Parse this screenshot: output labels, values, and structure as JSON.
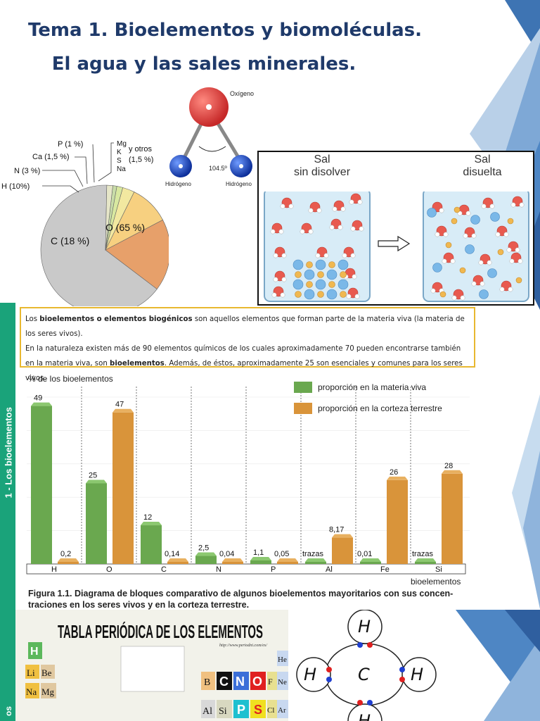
{
  "title_line1": "Tema 1. Bioelementos y biomoléculas.",
  "title_line2": "El agua y las sales minerales.",
  "pie": {
    "slices": [
      {
        "label": "O (65 %)",
        "value": 65,
        "color": "#c9c9c9"
      },
      {
        "label": "C (18 %)",
        "value": 18,
        "color": "#e7a06a"
      },
      {
        "label": "H (10%)",
        "value": 10,
        "color": "#f7d080"
      },
      {
        "label": "N  (3 %)",
        "value": 3,
        "color": "#f2e8a0"
      },
      {
        "label": "Ca (1,5 %)",
        "value": 1.5,
        "color": "#d8e8a0"
      },
      {
        "label": "P (1 %)",
        "value": 1,
        "color": "#c8dca8"
      },
      {
        "label": "Mg K S Na y otros (1,5 %)",
        "value": 1.5,
        "color": "#e6e6c8"
      }
    ],
    "others_elements": [
      "Mg",
      "K",
      "S",
      "Na"
    ],
    "others_label1": "y otros",
    "others_label2": "(1,5 %)"
  },
  "molecule": {
    "oxygen_label": "Oxígeno",
    "hydrogen_left": "Hidrógeno",
    "hydrogen_right": "Hidrógeno",
    "angle": "104.5º"
  },
  "beakers": {
    "left_title1": "Sal",
    "left_title2": "sin disolver",
    "right_title1": "Sal",
    "right_title2": "disuelta"
  },
  "intro": {
    "p1_start": "Los ",
    "p1_bold": "bioelementos o elementos biogénicos",
    "p1_end": " son aquellos elementos que forman parte de la materia viva (la materia de los seres vivos).",
    "p2_start": "En la naturaleza existen más de 90 elementos químicos de los cuales aproximadamente 70 pueden encontrarse también en la materia viva, son ",
    "p2_bold": "bioelementos",
    "p2_end": ". Además, de éstos, aproximadamente 25 son esenciales y comunes para los seres vivos."
  },
  "side_label": "1 - Los bioelementos",
  "side_label2": "os",
  "chart_data": {
    "type": "bar",
    "ylabel": "% de los bioelementos",
    "xlabel": "bioelementos",
    "categories": [
      "H",
      "O",
      "C",
      "N",
      "P",
      "Al",
      "Fe",
      "Si"
    ],
    "series": [
      {
        "name": "proporción en la materia viva",
        "color": "#6aa84f",
        "values": [
          49,
          25,
          12,
          2.5,
          1.1,
          0,
          0.01,
          0
        ],
        "labels": [
          "49",
          "25",
          "12",
          "2,5",
          "1,1",
          "trazas",
          "0,01",
          "trazas"
        ]
      },
      {
        "name": "proporción en la corteza terrestre",
        "color": "#d9943a",
        "values": [
          0.2,
          47,
          0.14,
          0.04,
          0.05,
          8.17,
          26,
          28
        ],
        "labels": [
          "0,2",
          "47",
          "0,14",
          "0,04",
          "0,05",
          "8,17",
          "26",
          "28"
        ]
      }
    ],
    "ylim": [
      0,
      50
    ]
  },
  "caption_bold": "Figura 1.1. Diagrama de bloques comparativo de algunos bioelementos mayoritarios con sus concen-",
  "caption_rest": "traciones en los seres vivos y en la corteza terrestre.",
  "periodic": {
    "title": "TABLA PERIÓDICA DE LOS ELEMENTOS",
    "url": "http://www.periodni.com/es/",
    "highlighted": [
      "C",
      "N",
      "O",
      "P",
      "S"
    ],
    "visible": [
      "H",
      "He",
      "Li",
      "Be",
      "Na",
      "Mg",
      "B",
      "F",
      "Ne",
      "Al",
      "Si",
      "Cl",
      "Ar"
    ]
  },
  "methane": {
    "center": "C",
    "top": "H",
    "left": "H",
    "right": "H",
    "bottom": "H"
  }
}
